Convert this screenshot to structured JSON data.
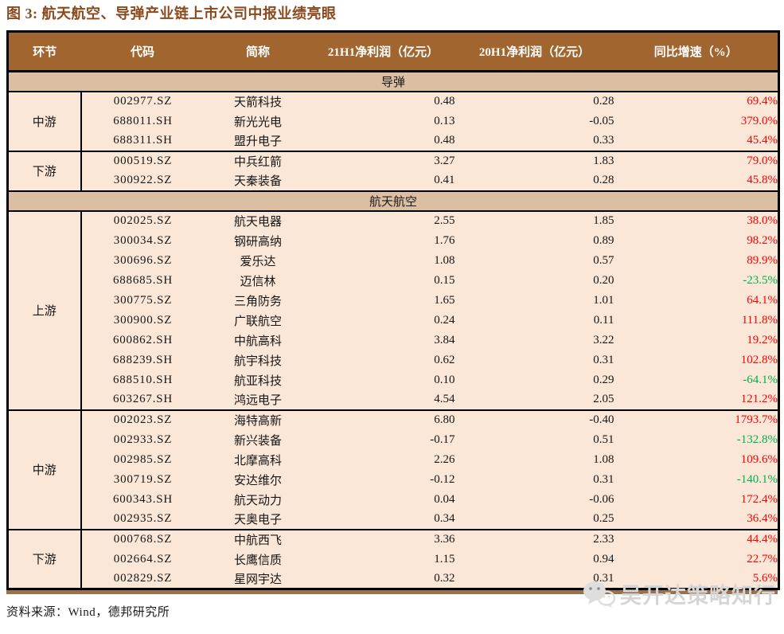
{
  "title": "图 3: 航天航空、导弹产业链上市公司中报业绩亮眼",
  "source_note": "资料来源：Wind，德邦研究所",
  "watermark_text": "吴开达策略知行",
  "watermark_icon": "wechat-bubbles-icon",
  "colors": {
    "title_text": "#8a4a1e",
    "header_bg": "#a1662f",
    "header_text": "#ffffff",
    "section_bg": "#dcbea2",
    "row_bg": "#fbe7d7",
    "segment_bg": "#ffffff",
    "positive_pct": "#ff0000",
    "negative_pct": "#00b050",
    "bottom_band": "#9a714c",
    "border": "#000000"
  },
  "table": {
    "headers": [
      "环节",
      "代码",
      "简称",
      "21H1净利润（亿元）",
      "20H1净利润（亿元）",
      "同比增速（%）"
    ],
    "sections": [
      {
        "name": "导弹",
        "groups": [
          {
            "segment": "中游",
            "rows": [
              {
                "code": "002977.SZ",
                "name": "天箭科技",
                "p21": "0.48",
                "p20": "0.28",
                "yoy": "69.4%"
              },
              {
                "code": "688011.SH",
                "name": "新光光电",
                "p21": "0.13",
                "p20": "-0.05",
                "yoy": "379.0%"
              },
              {
                "code": "688311.SH",
                "name": "盟升电子",
                "p21": "0.48",
                "p20": "0.33",
                "yoy": "45.4%"
              }
            ]
          },
          {
            "segment": "下游",
            "rows": [
              {
                "code": "000519.SZ",
                "name": "中兵红箭",
                "p21": "3.27",
                "p20": "1.83",
                "yoy": "79.0%"
              },
              {
                "code": "300922.SZ",
                "name": "天秦装备",
                "p21": "0.41",
                "p20": "0.28",
                "yoy": "45.8%"
              }
            ]
          }
        ]
      },
      {
        "name": "航天航空",
        "groups": [
          {
            "segment": "上游",
            "rows": [
              {
                "code": "002025.SZ",
                "name": "航天电器",
                "p21": "2.55",
                "p20": "1.85",
                "yoy": "38.0%"
              },
              {
                "code": "300034.SZ",
                "name": "钢研高纳",
                "p21": "1.76",
                "p20": "0.89",
                "yoy": "98.2%"
              },
              {
                "code": "300696.SZ",
                "name": "爱乐达",
                "p21": "1.08",
                "p20": "0.57",
                "yoy": "89.9%"
              },
              {
                "code": "688685.SH",
                "name": "迈信林",
                "p21": "0.15",
                "p20": "0.20",
                "yoy": "-23.5%"
              },
              {
                "code": "300775.SZ",
                "name": "三角防务",
                "p21": "1.65",
                "p20": "1.01",
                "yoy": "64.1%"
              },
              {
                "code": "300900.SZ",
                "name": "广联航空",
                "p21": "0.24",
                "p20": "0.11",
                "yoy": "111.8%"
              },
              {
                "code": "600862.SH",
                "name": "中航高科",
                "p21": "3.84",
                "p20": "3.22",
                "yoy": "19.2%"
              },
              {
                "code": "688239.SH",
                "name": "航宇科技",
                "p21": "0.62",
                "p20": "0.31",
                "yoy": "102.8%"
              },
              {
                "code": "688510.SH",
                "name": "航亚科技",
                "p21": "0.10",
                "p20": "0.29",
                "yoy": "-64.1%"
              },
              {
                "code": "603267.SH",
                "name": "鸿远电子",
                "p21": "4.54",
                "p20": "2.05",
                "yoy": "121.2%"
              }
            ]
          },
          {
            "segment": "中游",
            "rows": [
              {
                "code": "002023.SZ",
                "name": "海特高新",
                "p21": "6.80",
                "p20": "-0.40",
                "yoy": "1793.7%"
              },
              {
                "code": "002933.SZ",
                "name": "新兴装备",
                "p21": "-0.17",
                "p20": "0.51",
                "yoy": "-132.8%"
              },
              {
                "code": "002985.SZ",
                "name": "北摩高科",
                "p21": "2.26",
                "p20": "1.08",
                "yoy": "109.6%"
              },
              {
                "code": "300719.SZ",
                "name": "安达维尔",
                "p21": "-0.12",
                "p20": "0.31",
                "yoy": "-140.1%"
              },
              {
                "code": "600343.SH",
                "name": "航天动力",
                "p21": "0.04",
                "p20": "-0.06",
                "yoy": "172.4%"
              },
              {
                "code": "002935.SZ",
                "name": "天奥电子",
                "p21": "0.34",
                "p20": "0.25",
                "yoy": "36.4%"
              }
            ]
          },
          {
            "segment": "下游",
            "rows": [
              {
                "code": "000768.SZ",
                "name": "中航西飞",
                "p21": "3.36",
                "p20": "2.33",
                "yoy": "44.4%"
              },
              {
                "code": "002664.SZ",
                "name": "长鹰信质",
                "p21": "1.15",
                "p20": "0.94",
                "yoy": "22.7%"
              },
              {
                "code": "002829.SZ",
                "name": "星网宇达",
                "p21": "0.32",
                "p20": "0.31",
                "yoy": "5.6%"
              }
            ]
          }
        ]
      }
    ]
  }
}
